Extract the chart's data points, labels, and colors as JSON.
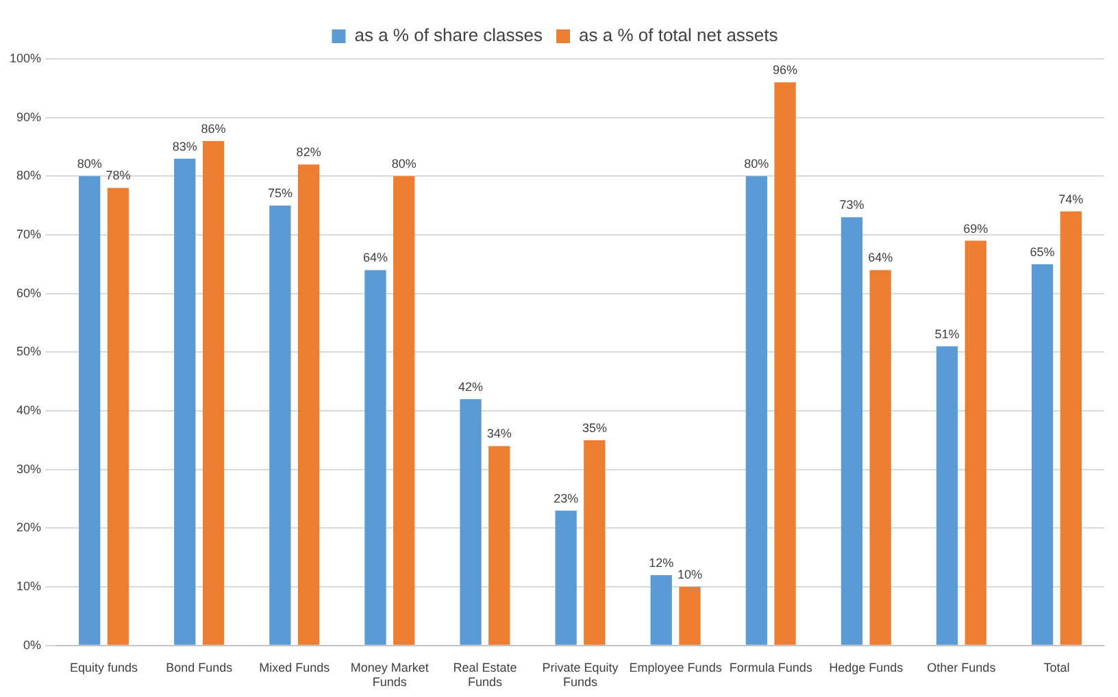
{
  "chart_data": {
    "type": "bar",
    "categories": [
      "Equity funds",
      "Bond Funds",
      "Mixed Funds",
      "Money Market Funds",
      "Real Estate Funds",
      "Private Equity Funds",
      "Employee Funds",
      "Formula Funds",
      "Hedge Funds",
      "Other Funds",
      "Total"
    ],
    "series": [
      {
        "name": "as a % of share classes",
        "color": "#5b9bd5",
        "values": [
          80,
          83,
          75,
          64,
          42,
          23,
          12,
          80,
          73,
          51,
          65
        ],
        "value_labels": [
          "80%",
          "83%",
          "75%",
          "64%",
          "42%",
          "23%",
          "12%",
          "80%",
          "73%",
          "51%",
          "65%"
        ]
      },
      {
        "name": "as a % of total net assets",
        "color": "#ed7d31",
        "values": [
          78,
          86,
          82,
          80,
          34,
          35,
          10,
          96,
          64,
          69,
          74
        ],
        "value_labels": [
          "78%",
          "86%",
          "82%",
          "80%",
          "34%",
          "35%",
          "10%",
          "96%",
          "64%",
          "69%",
          "74%"
        ]
      }
    ],
    "ylim": [
      0,
      100
    ],
    "yticks": [
      {
        "value": 0,
        "label": "0%"
      },
      {
        "value": 10,
        "label": "10%"
      },
      {
        "value": 20,
        "label": "20%"
      },
      {
        "value": 30,
        "label": "30%"
      },
      {
        "value": 40,
        "label": "40%"
      },
      {
        "value": 50,
        "label": "50%"
      },
      {
        "value": 60,
        "label": "60%"
      },
      {
        "value": 70,
        "label": "70%"
      },
      {
        "value": 80,
        "label": "80%"
      },
      {
        "value": 90,
        "label": "90%"
      },
      {
        "value": 100,
        "label": "100%"
      }
    ],
    "grid": "y",
    "legend": "top"
  }
}
